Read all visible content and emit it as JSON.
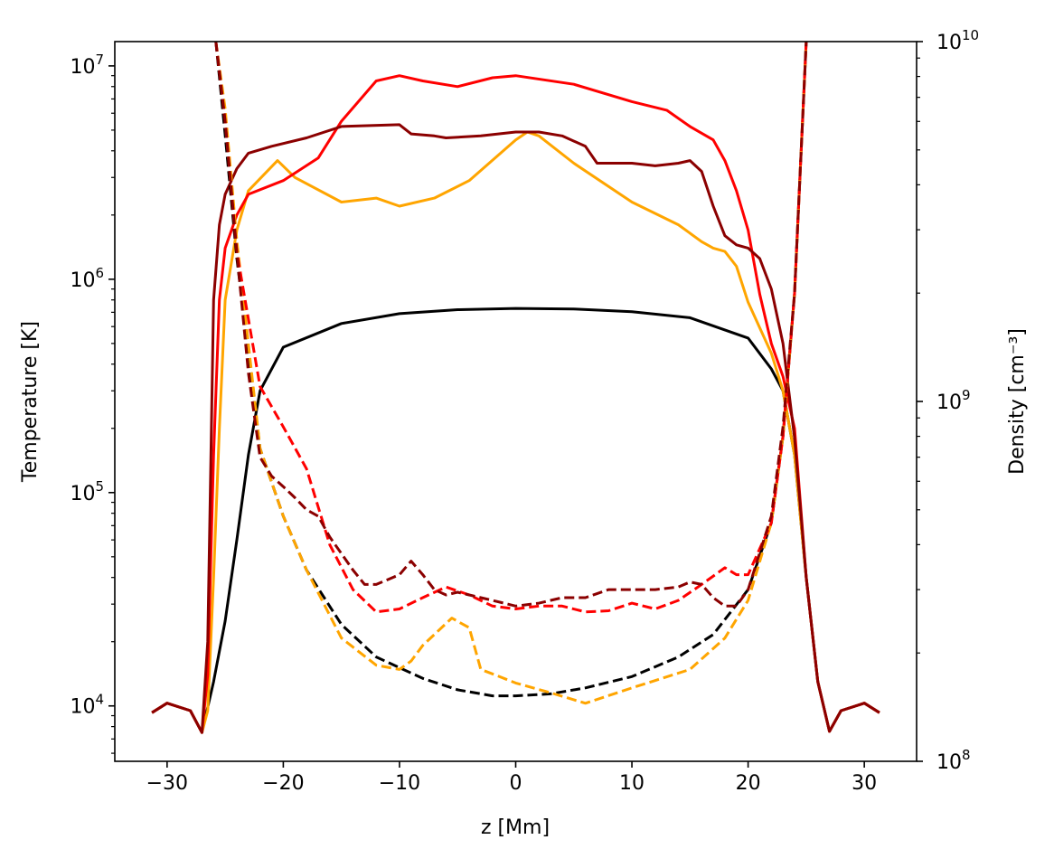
{
  "chart_data": {
    "type": "line",
    "title": "",
    "xlabel": "z [Mm]",
    "ylabel_left": "Temperature [K]",
    "ylabel_right": "Density [cm⁻³]",
    "xlim": [
      -34.5,
      34.5
    ],
    "ylim_left": [
      5500,
      13000000
    ],
    "ylim_right": [
      100000000,
      10000000000
    ],
    "yscale_left": "log",
    "yscale_right": "log",
    "grid": false,
    "legend": "none",
    "x_ticks": [
      {
        "value": -30,
        "label": "−30"
      },
      {
        "value": -20,
        "label": "−20"
      },
      {
        "value": -10,
        "label": "−10"
      },
      {
        "value": 0,
        "label": "0"
      },
      {
        "value": 10,
        "label": "10"
      },
      {
        "value": 20,
        "label": "20"
      },
      {
        "value": 30,
        "label": "30"
      }
    ],
    "y_ticks_left": [
      {
        "value": 10000,
        "base": "10",
        "exp": "4"
      },
      {
        "value": 100000,
        "base": "10",
        "exp": "5"
      },
      {
        "value": 1000000,
        "base": "10",
        "exp": "6"
      },
      {
        "value": 10000000,
        "base": "10",
        "exp": "7"
      }
    ],
    "y_ticks_right": [
      {
        "value": 100000000,
        "base": "10",
        "exp": "8"
      },
      {
        "value": 1000000000,
        "base": "10",
        "exp": "9"
      },
      {
        "value": 10000000000,
        "base": "10",
        "exp": "10"
      }
    ],
    "series": [
      {
        "axis": "left",
        "color": "#000000",
        "style": "solid",
        "x": [
          -31.3,
          -30,
          -28,
          -27,
          -26,
          -25,
          -24,
          -23,
          -22,
          -20,
          -15,
          -10,
          -5,
          0,
          5,
          10,
          15,
          20,
          22,
          23,
          24,
          25,
          26,
          27,
          28,
          30,
          31.3
        ],
        "y": [
          9300,
          10300,
          9500,
          7500,
          13000,
          25000,
          60000,
          150000,
          300000,
          480000,
          620000,
          690000,
          720000,
          730000,
          725000,
          705000,
          660000,
          530000,
          380000,
          300000,
          150000,
          40000,
          13000,
          7600,
          9500,
          10300,
          9300
        ]
      },
      {
        "axis": "left",
        "color": "#ffa500",
        "style": "solid",
        "x": [
          -31.3,
          -30,
          -28,
          -27,
          -26.5,
          -26,
          -25.5,
          -25,
          -24,
          -23,
          -20.5,
          -19,
          -15,
          -12,
          -10,
          -7,
          -4,
          0,
          1,
          2,
          5,
          10,
          14,
          16,
          17,
          18,
          19,
          20,
          22,
          23,
          24,
          25,
          26,
          27,
          28,
          30,
          31.3
        ],
        "y": [
          9300,
          10300,
          9500,
          7500,
          9500,
          40000,
          200000,
          800000,
          1700000,
          2600000,
          3600000,
          3000000,
          2300000,
          2400000,
          2200000,
          2400000,
          2900000,
          4500000,
          4900000,
          4700000,
          3500000,
          2300000,
          1800000,
          1500000,
          1400000,
          1350000,
          1150000,
          780000,
          450000,
          300000,
          150000,
          40000,
          13000,
          7600,
          9500,
          10300,
          9300
        ]
      },
      {
        "axis": "left",
        "color": "#ff0000",
        "style": "solid",
        "x": [
          -31.3,
          -30,
          -28,
          -27,
          -26.5,
          -26,
          -25.5,
          -25,
          -24,
          -23,
          -20,
          -17,
          -15,
          -12,
          -10,
          -8,
          -5,
          -2,
          0,
          5,
          10,
          13,
          15,
          17,
          18,
          19,
          20,
          21,
          22,
          23,
          24,
          25,
          26,
          27,
          28,
          30,
          31.3
        ],
        "y": [
          9300,
          10300,
          9500,
          7500,
          14000,
          150000,
          800000,
          1400000,
          2000000,
          2500000,
          2900000,
          3700000,
          5500000,
          8500000,
          9000000,
          8500000,
          8000000,
          8800000,
          9000000,
          8200000,
          6800000,
          6200000,
          5200000,
          4500000,
          3600000,
          2600000,
          1700000,
          850000,
          500000,
          350000,
          200000,
          40000,
          13000,
          7600,
          9500,
          10300,
          9300
        ]
      },
      {
        "axis": "left",
        "color": "#8b0000",
        "style": "solid",
        "x": [
          -31.3,
          -30,
          -28,
          -27,
          -26.5,
          -26,
          -25.5,
          -25,
          -24,
          -23,
          -21,
          -18,
          -15,
          -10,
          -9,
          -7,
          -6,
          -3,
          0,
          2,
          4,
          6,
          7,
          8,
          10,
          12,
          14,
          15,
          16,
          17,
          18,
          19,
          20,
          21,
          22,
          23,
          24,
          25,
          26,
          27,
          28,
          30,
          31.3
        ],
        "y": [
          9300,
          10300,
          9500,
          7500,
          20000,
          800000,
          1800000,
          2500000,
          3300000,
          3900000,
          4200000,
          4600000,
          5200000,
          5300000,
          4800000,
          4700000,
          4600000,
          4700000,
          4900000,
          4900000,
          4700000,
          4200000,
          3500000,
          3500000,
          3500000,
          3400000,
          3500000,
          3600000,
          3200000,
          2200000,
          1600000,
          1450000,
          1400000,
          1250000,
          900000,
          500000,
          180000,
          40000,
          13000,
          7600,
          9500,
          10300,
          9300
        ]
      },
      {
        "axis": "right",
        "color": "#000000",
        "style": "dashed",
        "x": [
          -25.8,
          -25,
          -24,
          -22,
          -20,
          -18,
          -15,
          -12,
          -8,
          -5,
          -2,
          0,
          3,
          6,
          10,
          14,
          17,
          20,
          22,
          23,
          24,
          25
        ],
        "y": [
          10000000000,
          5500000000,
          2500000000,
          740000000,
          480000000,
          340000000,
          240000000,
          195000000,
          170000000,
          158000000,
          152000000,
          152000000,
          154000000,
          160000000,
          172000000,
          195000000,
          225000000,
          300000000,
          460000000,
          800000000,
          2000000000,
          10000000000
        ]
      },
      {
        "axis": "right",
        "color": "#ffa500",
        "style": "dashed",
        "x": [
          -25.8,
          -25,
          -24,
          -22,
          -20,
          -18,
          -15,
          -12,
          -10,
          -9,
          -8,
          -5.5,
          -4,
          -3,
          -2,
          0,
          3,
          6,
          10,
          15,
          18,
          20,
          22,
          23,
          24,
          25
        ],
        "y": [
          10000000000,
          6500000000,
          2800000000,
          740000000,
          480000000,
          340000000,
          220000000,
          185000000,
          180000000,
          190000000,
          210000000,
          250000000,
          235000000,
          180000000,
          175000000,
          165000000,
          155000000,
          145000000,
          160000000,
          180000000,
          220000000,
          280000000,
          460000000,
          800000000,
          2000000000,
          10000000000
        ]
      },
      {
        "axis": "right",
        "color": "#ff0000",
        "style": "dashed",
        "x": [
          -25.8,
          -25,
          -24,
          -22,
          -20,
          -18,
          -16,
          -14,
          -12,
          -10,
          -8,
          -6,
          -4,
          -2,
          0,
          2,
          4,
          6,
          8,
          10,
          12,
          14,
          16,
          18,
          19,
          20,
          22,
          23,
          24,
          25
        ],
        "y": [
          10000000000,
          6000000000,
          2600000000,
          1100000000,
          850000000,
          650000000,
          400000000,
          300000000,
          260000000,
          265000000,
          285000000,
          305000000,
          290000000,
          270000000,
          265000000,
          270000000,
          270000000,
          260000000,
          262000000,
          275000000,
          265000000,
          280000000,
          310000000,
          345000000,
          330000000,
          330000000,
          460000000,
          800000000,
          2000000000,
          10000000000
        ]
      },
      {
        "axis": "right",
        "color": "#8b0000",
        "style": "dashed",
        "x": [
          -25.8,
          -25,
          -24,
          -23,
          -22,
          -21,
          -20,
          -19,
          -18,
          -17,
          -16,
          -14,
          -13,
          -12,
          -10,
          -9,
          -8,
          -7,
          -6,
          -5,
          -4,
          -2,
          0,
          2,
          4,
          6,
          8,
          10,
          12,
          14,
          15,
          16,
          17,
          18,
          19,
          20,
          22,
          23,
          24,
          25
        ],
        "y": [
          10000000000,
          6000000000,
          2600000000,
          1200000000,
          700000000,
          620000000,
          580000000,
          540000000,
          500000000,
          480000000,
          420000000,
          340000000,
          310000000,
          310000000,
          330000000,
          360000000,
          330000000,
          300000000,
          290000000,
          295000000,
          290000000,
          280000000,
          270000000,
          275000000,
          285000000,
          285000000,
          300000000,
          300000000,
          300000000,
          305000000,
          315000000,
          310000000,
          285000000,
          270000000,
          270000000,
          300000000,
          480000000,
          850000000,
          2000000000,
          10000000000
        ]
      }
    ]
  }
}
